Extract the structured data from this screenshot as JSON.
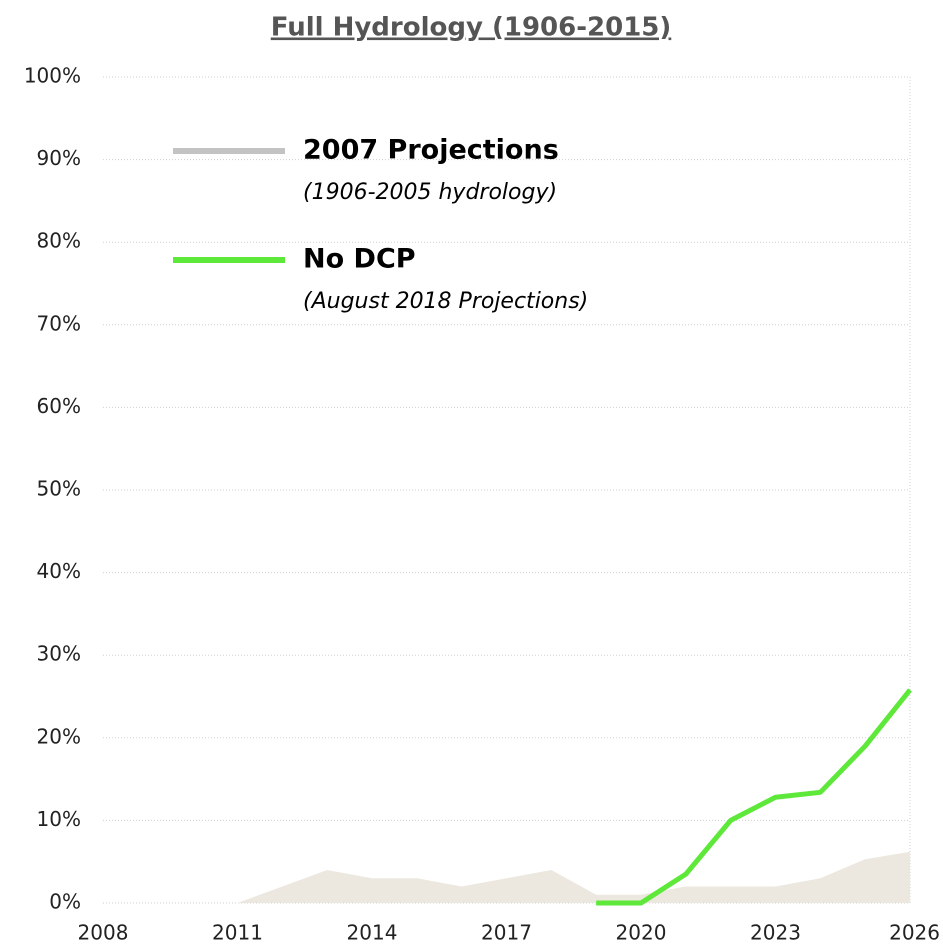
{
  "chart_data": {
    "type": "line",
    "title": "Full Hydrology (1906-2015)",
    "series": [
      {
        "name": "2007 Projections",
        "description": "(1906-2005 hydrology)",
        "style": "area",
        "color": "#ece8df",
        "legend_color": "#c3c3c3",
        "x": [
          2008,
          2009,
          2010,
          2011,
          2012,
          2013,
          2014,
          2015,
          2016,
          2017,
          2018,
          2019,
          2020,
          2021,
          2022,
          2023,
          2024,
          2025,
          2026
        ],
        "values": [
          0,
          0,
          0,
          0,
          2,
          4,
          3,
          3,
          2,
          3,
          4,
          1,
          1,
          2,
          2,
          2,
          3,
          5.3,
          6.2
        ]
      },
      {
        "name": "No DCP",
        "description": "(August 2018 Projections)",
        "style": "line",
        "color": "#5ee83a",
        "legend_color": "#5ee83a",
        "x": [
          2019,
          2020,
          2021,
          2022,
          2023,
          2024,
          2025,
          2026
        ],
        "values": [
          0,
          0,
          3.5,
          10,
          12.8,
          13.4,
          19,
          25.8
        ]
      }
    ],
    "xlim": [
      2008,
      2026
    ],
    "xticks": [
      2008,
      2011,
      2014,
      2017,
      2020,
      2023,
      2026
    ],
    "ylim": [
      0,
      100
    ],
    "yticks": [
      {
        "value": 0,
        "label": "0%"
      },
      {
        "value": 10,
        "label": "10%"
      },
      {
        "value": 20,
        "label": "20%"
      },
      {
        "value": 30,
        "label": "30%"
      },
      {
        "value": 40,
        "label": "40%"
      },
      {
        "value": 50,
        "label": "50%"
      },
      {
        "value": 60,
        "label": "60%"
      },
      {
        "value": 70,
        "label": "70%"
      },
      {
        "value": 80,
        "label": "80%"
      },
      {
        "value": 90,
        "label": "90%"
      },
      {
        "value": 100,
        "label": "100%"
      }
    ],
    "grid": true
  }
}
